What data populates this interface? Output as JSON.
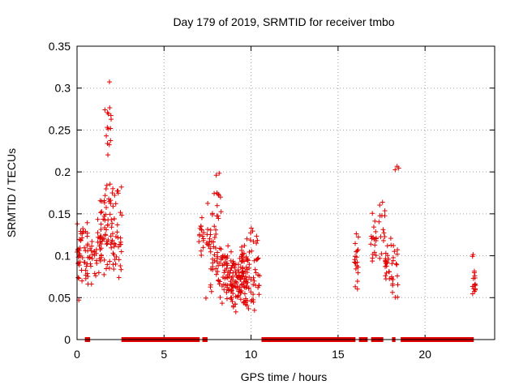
{
  "chart_data": {
    "type": "scatter",
    "title": "Day 179 of 2019, SRMTID for receiver tmbo",
    "xlabel": "GPS time / hours",
    "ylabel": "SRMTID / TECUs",
    "xlim": [
      0,
      24
    ],
    "ylim": [
      0,
      0.35
    ],
    "x_ticks": [
      0,
      5,
      10,
      15,
      20
    ],
    "x_tick_labels": [
      "0",
      "5",
      "10",
      "15",
      "20"
    ],
    "y_ticks": [
      0,
      0.05,
      0.1,
      0.15,
      0.2,
      0.25,
      0.3,
      0.35
    ],
    "y_tick_labels": [
      "0",
      "0.05",
      "0.1",
      "0.15",
      "0.2",
      "0.25",
      "0.3",
      "0.35"
    ],
    "grid": true,
    "marker": "+",
    "series_color": "#e00000",
    "zero_segments": [
      [
        0.45,
        0.75
      ],
      [
        2.55,
        7.05
      ],
      [
        7.2,
        7.5
      ],
      [
        10.6,
        16.0
      ],
      [
        16.2,
        16.7
      ],
      [
        16.9,
        17.6
      ],
      [
        18.1,
        18.3
      ],
      [
        18.6,
        22.8
      ]
    ],
    "clusters": [
      {
        "x": [
          0.0,
          0.6
        ],
        "y": [
          0.04,
          0.16
        ],
        "n": 45
      },
      {
        "x": [
          0.6,
          1.4
        ],
        "y": [
          0.05,
          0.15
        ],
        "n": 40
      },
      {
        "x": [
          1.3,
          2.0
        ],
        "y": [
          0.07,
          0.2
        ],
        "n": 55
      },
      {
        "x": [
          1.6,
          2.0
        ],
        "y": [
          0.2,
          0.31
        ],
        "n": 15
      },
      {
        "x": [
          2.0,
          2.6
        ],
        "y": [
          0.05,
          0.19
        ],
        "n": 40
      },
      {
        "x": [
          7.0,
          7.5
        ],
        "y": [
          0.09,
          0.15
        ],
        "n": 18
      },
      {
        "x": [
          7.4,
          8.0
        ],
        "y": [
          0.03,
          0.19
        ],
        "n": 35
      },
      {
        "x": [
          7.9,
          8.3
        ],
        "y": [
          0.1,
          0.22
        ],
        "n": 12
      },
      {
        "x": [
          8.0,
          9.0
        ],
        "y": [
          0.04,
          0.12
        ],
        "n": 70
      },
      {
        "x": [
          8.8,
          9.8
        ],
        "y": [
          0.03,
          0.1
        ],
        "n": 80
      },
      {
        "x": [
          9.4,
          10.5
        ],
        "y": [
          0.03,
          0.14
        ],
        "n": 70
      },
      {
        "x": [
          15.9,
          16.2
        ],
        "y": [
          0.05,
          0.13
        ],
        "n": 20
      },
      {
        "x": [
          16.8,
          17.2
        ],
        "y": [
          0.07,
          0.16
        ],
        "n": 18
      },
      {
        "x": [
          17.3,
          17.7
        ],
        "y": [
          0.09,
          0.175
        ],
        "n": 14
      },
      {
        "x": [
          17.7,
          18.5
        ],
        "y": [
          0.05,
          0.13
        ],
        "n": 40
      },
      {
        "x": [
          18.2,
          18.5
        ],
        "y": [
          0.2,
          0.21
        ],
        "n": 3
      },
      {
        "x": [
          22.7,
          22.9
        ],
        "y": [
          0.04,
          0.11
        ],
        "n": 16
      }
    ]
  }
}
